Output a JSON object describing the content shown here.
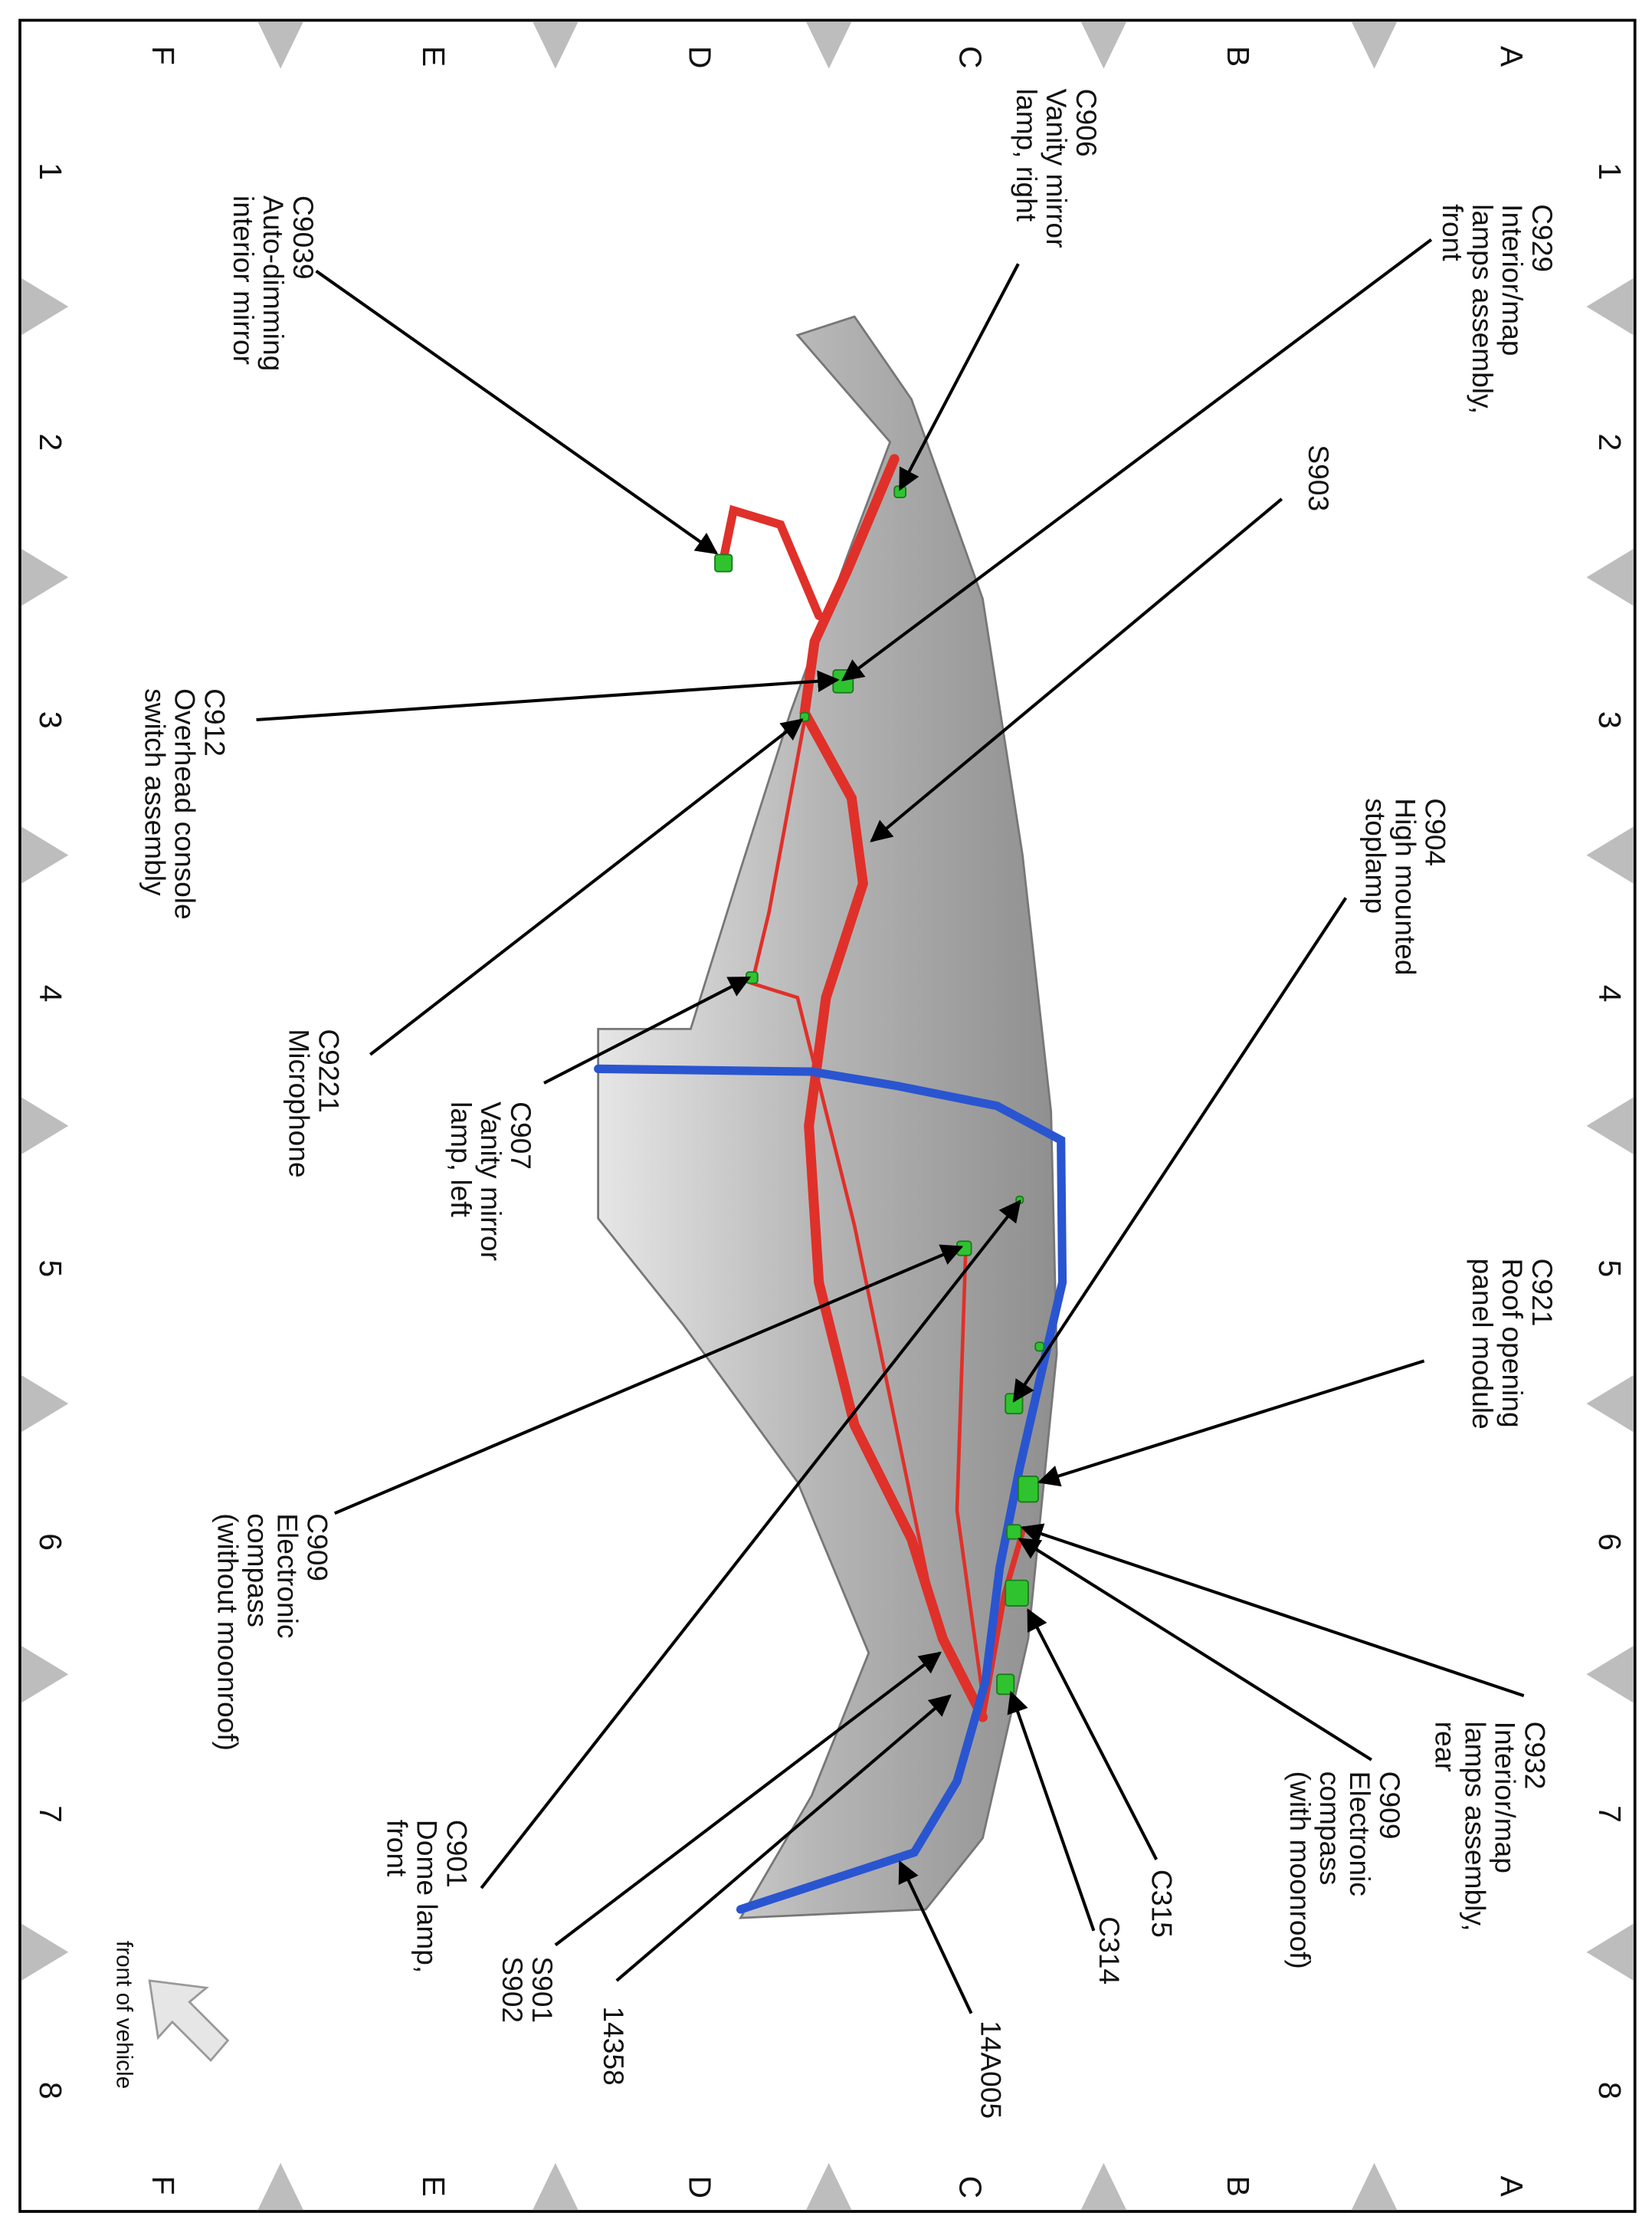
{
  "grid": {
    "columns": [
      "A",
      "B",
      "C",
      "D",
      "E",
      "F"
    ],
    "rows": [
      "1",
      "2",
      "3",
      "4",
      "5",
      "6",
      "7",
      "8"
    ]
  },
  "colors": {
    "harness_red": "#e0302a",
    "harness_blue": "#2a55d0",
    "connector_green": "#2fc42f",
    "roof_gray": "#b8b8b8"
  },
  "orientation": {
    "label": "front of vehicle",
    "icon": "arrow-up-left-icon"
  },
  "callouts": [
    {
      "id": "c929",
      "lines": [
        "C929",
        "Interior/map",
        "lamps assembly,",
        "front"
      ]
    },
    {
      "id": "c906",
      "lines": [
        "C906",
        "Vanity mirror",
        "lamp, right"
      ]
    },
    {
      "id": "c9039",
      "lines": [
        "C9039",
        "Auto-dimming",
        "interior mirror"
      ]
    },
    {
      "id": "s903",
      "lines": [
        "S903"
      ]
    },
    {
      "id": "c904",
      "lines": [
        "C904",
        "High mounted",
        "stoplamp"
      ]
    },
    {
      "id": "c912",
      "lines": [
        "C912",
        "Overhead console",
        "switch assembly"
      ]
    },
    {
      "id": "c9221",
      "lines": [
        "C9221",
        "Microphone"
      ]
    },
    {
      "id": "c907",
      "lines": [
        "C907",
        "Vanity mirror",
        "lamp, left"
      ]
    },
    {
      "id": "c921",
      "lines": [
        "C921",
        "Roof opening",
        "panel module"
      ]
    },
    {
      "id": "c909a",
      "lines": [
        "C909",
        "Electronic",
        "compass",
        "(without moonroof)"
      ]
    },
    {
      "id": "c932",
      "lines": [
        "C932",
        "Interior/map",
        "lamps assembly,",
        "rear"
      ]
    },
    {
      "id": "c909b",
      "lines": [
        "C909",
        "Electronic",
        "compass",
        "(with moonroof)"
      ]
    },
    {
      "id": "c315",
      "lines": [
        "C315"
      ]
    },
    {
      "id": "c314",
      "lines": [
        "C314"
      ]
    },
    {
      "id": "c901",
      "lines": [
        "C901",
        "Dome lamp,",
        "front"
      ]
    },
    {
      "id": "s901",
      "lines": [
        "S901",
        "S902"
      ]
    },
    {
      "id": "h14358",
      "lines": [
        "14358"
      ]
    },
    {
      "id": "h14a005",
      "lines": [
        "14A005"
      ]
    }
  ]
}
